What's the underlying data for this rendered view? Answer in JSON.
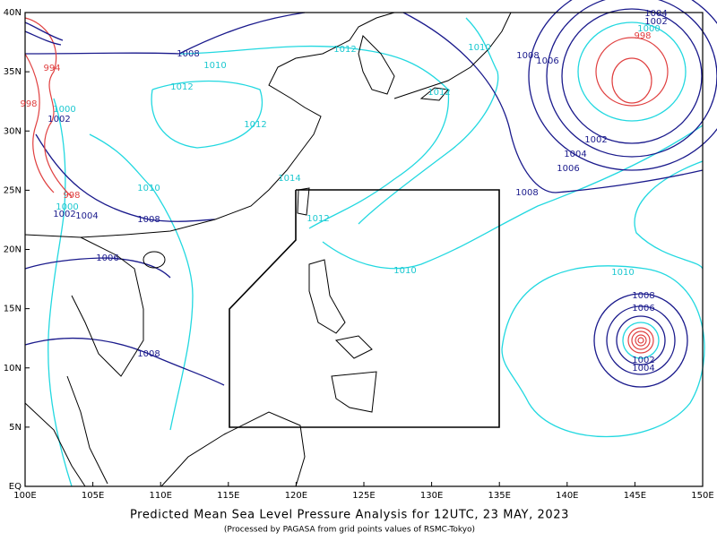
{
  "map": {
    "title": "Predicted Mean Sea Level Pressure Analysis for 12UTC, 23 MAY, 2023",
    "subtitle": "(Processed by PAGASA from grid points values of RSMC-Tokyo)",
    "lon_range": [
      100,
      150
    ],
    "lat_range": [
      0,
      40
    ],
    "lon_ticks": [
      {
        "value": 100,
        "label": "100E"
      },
      {
        "value": 105,
        "label": "105E"
      },
      {
        "value": 110,
        "label": "110E"
      },
      {
        "value": 115,
        "label": "115E"
      },
      {
        "value": 120,
        "label": "120E"
      },
      {
        "value": 125,
        "label": "125E"
      },
      {
        "value": 130,
        "label": "130E"
      },
      {
        "value": 135,
        "label": "135E"
      },
      {
        "value": 140,
        "label": "140E"
      },
      {
        "value": 145,
        "label": "145E"
      },
      {
        "value": 150,
        "label": "150E"
      }
    ],
    "lat_ticks": [
      {
        "value": 0,
        "label": "EQ"
      },
      {
        "value": 5,
        "label": "5N"
      },
      {
        "value": 10,
        "label": "10N"
      },
      {
        "value": 15,
        "label": "15N"
      },
      {
        "value": 20,
        "label": "20N"
      },
      {
        "value": 25,
        "label": "25N"
      },
      {
        "value": 30,
        "label": "30N"
      },
      {
        "value": 35,
        "label": "35N"
      },
      {
        "value": 40,
        "label": "40N"
      }
    ],
    "isobar_labels": [
      "1008",
      "1010",
      "1012",
      "1010",
      "1004",
      "1002",
      "1000",
      "998",
      "1008",
      "1006",
      "1012",
      "1012",
      "1012",
      "994",
      "998",
      "1000",
      "1002",
      "1002",
      "1004",
      "1006",
      "1008",
      "1014",
      "1010",
      "998",
      "1000",
      "1002",
      "1004",
      "1008",
      "1012",
      "1006",
      "1010",
      "1010",
      "1008",
      "1006",
      "1008",
      "1002",
      "1004"
    ]
  }
}
